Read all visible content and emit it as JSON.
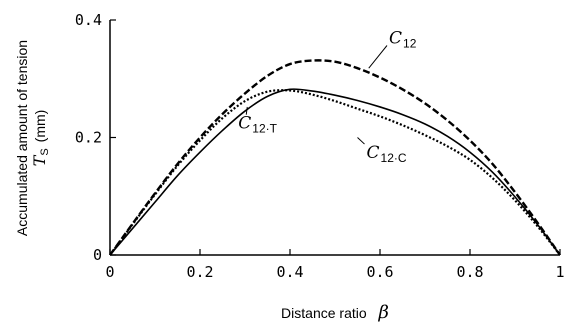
{
  "chart_data": {
    "type": "line",
    "xlabel": "Distance ratio",
    "xlabel_symbol": "β",
    "ylabel_line1": "Accumulated amount of tension",
    "ylabel_line2_symbol": "T",
    "ylabel_line2_sub": "S",
    "ylabel_line2_unit": "(mm)",
    "xlim": [
      0,
      1
    ],
    "ylim": [
      0,
      0.4
    ],
    "x_ticks": [
      0,
      0.2,
      0.4,
      0.6,
      0.8,
      1
    ],
    "x_tick_labels": [
      "0",
      "0.2",
      "0.4",
      "0.6",
      "0.8",
      "1"
    ],
    "y_ticks": [
      0,
      0.2,
      0.4
    ],
    "y_tick_labels": [
      "0",
      "0.2",
      "0.4"
    ],
    "grid": false,
    "legend": "none",
    "series": [
      {
        "key": "C12",
        "label_main": "C",
        "label_sub": "12",
        "style": "dashed",
        "x": [
          0,
          0.05,
          0.1,
          0.15,
          0.2,
          0.25,
          0.3,
          0.35,
          0.4,
          0.45,
          0.5,
          0.55,
          0.6,
          0.65,
          0.7,
          0.75,
          0.8,
          0.85,
          0.9,
          0.95,
          1
        ],
        "y": [
          0,
          0.053,
          0.105,
          0.155,
          0.2,
          0.24,
          0.275,
          0.305,
          0.325,
          0.331,
          0.329,
          0.318,
          0.302,
          0.282,
          0.258,
          0.229,
          0.195,
          0.155,
          0.107,
          0.055,
          0
        ]
      },
      {
        "key": "C12T",
        "label_main": "C",
        "label_sub": "12·T",
        "style": "solid",
        "x": [
          0,
          0.05,
          0.1,
          0.15,
          0.2,
          0.25,
          0.3,
          0.35,
          0.4,
          0.45,
          0.5,
          0.55,
          0.6,
          0.65,
          0.7,
          0.75,
          0.8,
          0.85,
          0.9,
          0.95,
          1
        ],
        "y": [
          0,
          0.045,
          0.09,
          0.135,
          0.175,
          0.212,
          0.245,
          0.27,
          0.282,
          0.279,
          0.272,
          0.263,
          0.252,
          0.239,
          0.223,
          0.202,
          0.175,
          0.141,
          0.099,
          0.052,
          0
        ]
      },
      {
        "key": "C12C",
        "label_main": "C",
        "label_sub": "12·C",
        "style": "dotted",
        "x": [
          0,
          0.05,
          0.1,
          0.15,
          0.2,
          0.25,
          0.3,
          0.35,
          0.4,
          0.45,
          0.5,
          0.55,
          0.6,
          0.65,
          0.7,
          0.75,
          0.8,
          0.85,
          0.9,
          0.95,
          1
        ],
        "y": [
          0,
          0.052,
          0.103,
          0.152,
          0.195,
          0.233,
          0.262,
          0.278,
          0.28,
          0.273,
          0.262,
          0.249,
          0.236,
          0.221,
          0.204,
          0.185,
          0.162,
          0.131,
          0.093,
          0.049,
          0
        ]
      }
    ],
    "annotations": [
      {
        "target": "C12",
        "text_main": "C",
        "text_sub": "12",
        "at": [
          0.62,
          0.36
        ],
        "leader_to": [
          0.575,
          0.318
        ]
      },
      {
        "target": "C12T",
        "text_main": "C",
        "text_sub": "12·T",
        "at": [
          0.285,
          0.215
        ],
        "leader_to": [
          0.305,
          0.252
        ]
      },
      {
        "target": "C12C",
        "text_main": "C",
        "text_sub": "12·C",
        "at": [
          0.57,
          0.165
        ],
        "leader_to": [
          0.55,
          0.2
        ]
      }
    ]
  }
}
